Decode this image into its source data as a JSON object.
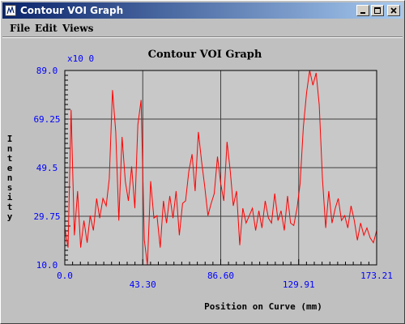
{
  "window": {
    "title": "Contour VOI Graph",
    "icon": "java-app-icon"
  },
  "title_buttons": [
    "minimize",
    "maximize",
    "close"
  ],
  "menu": [
    "File",
    "Edit",
    "Views"
  ],
  "colors": {
    "series": "#ff0000",
    "axis_text": "#0000ff",
    "grid": "#404040",
    "plot_bg": "#c8c8c8"
  },
  "chart_data": {
    "type": "line",
    "title": "Contour VOI Graph",
    "xlabel": "Position on Curve (mm)",
    "ylabel": "Intensity",
    "y_multiplier": "x10 0",
    "xlim": [
      0,
      173.21
    ],
    "ylim": [
      10.0,
      89.0
    ],
    "x_ticks": [
      "0.0",
      "43.30",
      "86.60",
      "129.91",
      "173.21"
    ],
    "y_ticks": [
      "10.0",
      "29.75",
      "49.5",
      "69.25",
      "89.0"
    ],
    "grid": true,
    "series": [
      {
        "x": [
          0,
          1.8,
          3.5,
          5.3,
          7.1,
          8.8,
          10.6,
          12.4,
          14.1,
          15.9,
          17.7,
          19.4,
          21.2,
          23.0,
          24.7,
          26.5,
          28.3,
          30.0,
          31.8,
          33.6,
          35.3,
          37.1,
          38.9,
          40.6,
          42.4,
          44.2,
          45.9,
          47.7,
          49.5,
          51.2,
          53.0,
          54.8,
          56.5,
          58.3,
          60.1,
          61.8,
          63.6,
          65.4,
          67.1,
          68.9,
          70.7,
          72.4,
          74.2,
          76.0,
          77.7,
          79.5,
          81.3,
          83.0,
          84.8,
          86.6,
          88.3,
          90.1,
          91.9,
          93.6,
          95.4,
          97.2,
          98.9,
          100.7,
          102.5,
          104.2,
          106.0,
          107.8,
          109.5,
          111.3,
          113.1,
          114.8,
          116.6,
          118.4,
          120.1,
          121.9,
          123.7,
          125.4,
          127.2,
          129.0,
          130.7,
          132.5,
          134.3,
          136.0,
          137.8,
          139.6,
          141.3,
          143.1,
          144.9,
          146.6,
          148.4,
          150.2,
          151.9,
          153.7,
          155.5,
          157.2,
          159.0,
          160.8,
          162.5,
          164.3,
          166.1,
          167.8,
          169.6,
          171.4,
          173.2
        ],
        "y": [
          25,
          17,
          73,
          22,
          40,
          17,
          28,
          19,
          30,
          24,
          37,
          29,
          37,
          34,
          45,
          81,
          64,
          28,
          62,
          44,
          36,
          50,
          33,
          67,
          77,
          20,
          10,
          44,
          29,
          30,
          17,
          36,
          27,
          38,
          29,
          40,
          22,
          35,
          36,
          48,
          55,
          40,
          64,
          52,
          42,
          30,
          35,
          39,
          54,
          43,
          36,
          60,
          48,
          34,
          40,
          18,
          33,
          27,
          30,
          33,
          24,
          32,
          25,
          36,
          29,
          27,
          39,
          28,
          32,
          24,
          38,
          27,
          26,
          33,
          43,
          66,
          80,
          89,
          83,
          88,
          75,
          45,
          25,
          40,
          27,
          33,
          37,
          28,
          30,
          25,
          34,
          28,
          20,
          27,
          22,
          25,
          21,
          19,
          24
        ]
      }
    ]
  }
}
